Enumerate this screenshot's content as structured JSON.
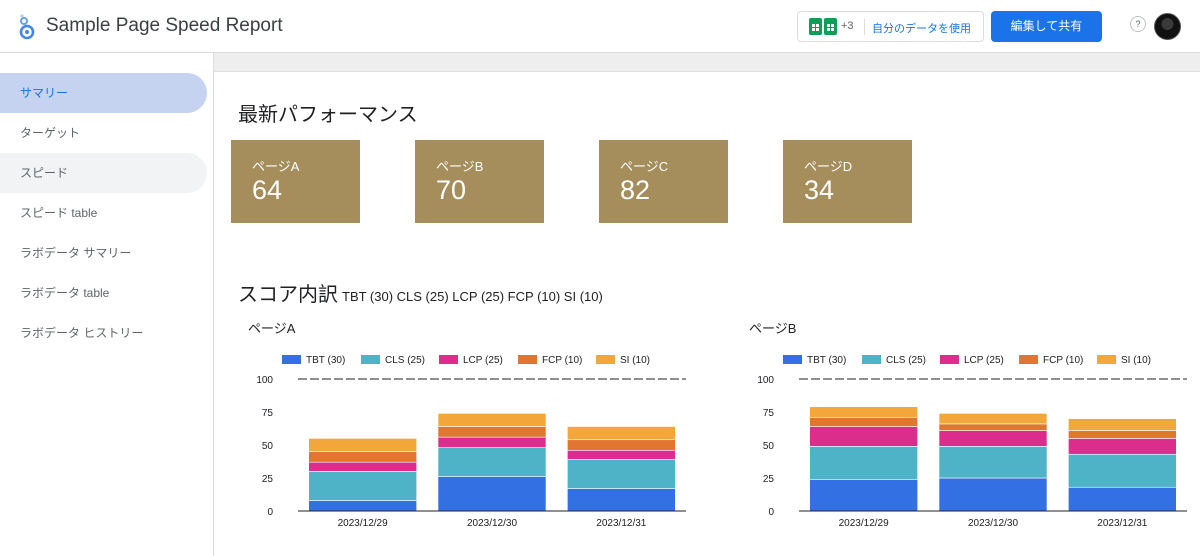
{
  "header": {
    "title": "Sample Page Speed Report",
    "plus_count": "+3",
    "use_data_label": "自分のデータを使用",
    "share_label": "編集して共有",
    "help_label": "?"
  },
  "sidebar": {
    "items": [
      {
        "label": "サマリー"
      },
      {
        "label": "ターゲット"
      },
      {
        "label": "スピード"
      },
      {
        "label": "スピード table"
      },
      {
        "label": "ラボデータ サマリー"
      },
      {
        "label": "ラボデータ table"
      },
      {
        "label": "ラボデータ ヒストリー"
      }
    ]
  },
  "main": {
    "section_title": "最新パフォーマンス",
    "cards": [
      {
        "label": "ページA",
        "value": "64"
      },
      {
        "label": "ページB",
        "value": "70"
      },
      {
        "label": "ページC",
        "value": "82"
      },
      {
        "label": "ページD",
        "value": "34"
      }
    ],
    "score_title": "スコア内訳",
    "score_subtitle": "TBT (30) CLS (25) LCP (25) FCP (10) SI (10)"
  },
  "colors": {
    "accent": "#1a73e8",
    "card": "#a58d5c",
    "TBT": "#3370e3",
    "CLS": "#4eb3c7",
    "LCP": "#dc2d8d",
    "FCP": "#e0762f",
    "SI": "#f3a73a"
  },
  "chart_data": [
    {
      "type": "bar",
      "stacked": true,
      "title": "ページA",
      "categories": [
        "2023/12/29",
        "2023/12/30",
        "2023/12/31"
      ],
      "series": [
        {
          "name": "TBT (30)",
          "values": [
            8,
            26,
            17
          ]
        },
        {
          "name": "CLS (25)",
          "values": [
            22,
            22,
            22
          ]
        },
        {
          "name": "LCP (25)",
          "values": [
            7,
            8,
            7
          ]
        },
        {
          "name": "FCP (10)",
          "values": [
            8,
            8,
            8
          ]
        },
        {
          "name": "SI (10)",
          "values": [
            10,
            10,
            10
          ]
        }
      ],
      "ylim": [
        0,
        100
      ],
      "yticks": [
        0,
        25,
        50,
        75,
        100
      ],
      "reference_line": 100,
      "legend": "top"
    },
    {
      "type": "bar",
      "stacked": true,
      "title": "ページB",
      "categories": [
        "2023/12/29",
        "2023/12/30",
        "2023/12/31"
      ],
      "series": [
        {
          "name": "TBT (30)",
          "values": [
            24,
            25,
            18
          ]
        },
        {
          "name": "CLS (25)",
          "values": [
            25,
            24,
            25
          ]
        },
        {
          "name": "LCP (25)",
          "values": [
            15,
            12,
            12
          ]
        },
        {
          "name": "FCP (10)",
          "values": [
            7,
            5,
            6
          ]
        },
        {
          "name": "SI (10)",
          "values": [
            8,
            8,
            9
          ]
        }
      ],
      "ylim": [
        0,
        100
      ],
      "yticks": [
        0,
        25,
        50,
        75,
        100
      ],
      "reference_line": 100,
      "legend": "top"
    }
  ]
}
